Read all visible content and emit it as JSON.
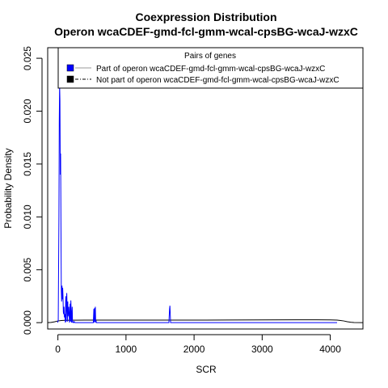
{
  "chart_data": {
    "type": "line",
    "title": "Coexpression Distribution",
    "subtitle": "Operon wcaCDEF-gmd-fcl-gmm-wcal-cpsBG-wcaJ-wzxC",
    "xlabel": "SCR",
    "ylabel": "Probability Density",
    "xlim": [
      -150,
      4480
    ],
    "ylim": [
      -0.0006,
      0.026
    ],
    "x_ticks": [
      0,
      1000,
      2000,
      3000,
      4000
    ],
    "y_ticks": [
      0.0,
      0.005,
      0.01,
      0.015,
      0.02,
      0.025
    ],
    "x_tick_labels": [
      "0",
      "1000",
      "2000",
      "3000",
      "4000"
    ],
    "y_tick_labels": [
      "0.000",
      "0.005",
      "0.010",
      "0.015",
      "0.020",
      "0.025"
    ],
    "grid": false,
    "legend": {
      "title": "Pairs of genes",
      "position": "top",
      "entries": [
        "Part of operon wcaCDEF-gmd-fcl-gmm-wcal-cpsBG-wcaJ-wzxC",
        "Not part of operon wcaCDEF-gmd-fcl-gmm-wcal-cpsBG-wcaJ-wzxC"
      ]
    },
    "series": [
      {
        "name": "Part of operon wcaCDEF-gmd-fcl-gmm-wcal-cpsBG-wcaJ-wzxC",
        "color": "#0000ff",
        "style": "solid",
        "x": [
          -5,
          5,
          15,
          20,
          25,
          30,
          35,
          40,
          45,
          50,
          55,
          60,
          65,
          70,
          75,
          80,
          85,
          90,
          95,
          100,
          110,
          115,
          120,
          130,
          140,
          145,
          150,
          160,
          170,
          180,
          185,
          190,
          200,
          210,
          215,
          220,
          230,
          240,
          250,
          520,
          528,
          535,
          540,
          545,
          550,
          555,
          560,
          565,
          1630,
          1640,
          1645,
          1650,
          1655,
          4100
        ],
        "y": [
          0,
          0.0002,
          0.01,
          0.019,
          0.0225,
          0.021,
          0.014,
          0.016,
          0.009,
          0.003,
          0.002,
          0.0035,
          0.0022,
          0.0033,
          0.0025,
          0.001,
          0.0008,
          0.0015,
          0.0005,
          0.0008,
          0.0,
          0.0025,
          0.0001,
          0.0028,
          0.0001,
          0.002,
          0.0006,
          0.0015,
          0.0,
          0.0018,
          0.0001,
          0.0021,
          0.0,
          0.0015,
          0.0,
          0.0001,
          0.0,
          0.0001,
          0.0,
          0.0,
          0.0013,
          0.0,
          0.0014,
          0.0001,
          0.0015,
          0.0,
          0.0002,
          0.0,
          0.0,
          0.0013,
          0.0016,
          0.0008,
          0.0,
          0.0
        ]
      },
      {
        "name": "Not part of operon wcaCDEF-gmd-fcl-gmm-wcal-cpsBG-wcaJ-wzxC",
        "color": "#000000",
        "style": "solid",
        "x": [
          -150,
          -100,
          -50,
          0,
          50,
          100,
          200,
          400,
          800,
          1200,
          1600,
          2000,
          2500,
          3000,
          3500,
          3800,
          4000,
          4100,
          4150,
          4200,
          4250,
          4300,
          4350,
          4480
        ],
        "y": [
          0.0,
          2e-05,
          8e-05,
          0.00016,
          0.0002,
          0.00022,
          0.00023,
          0.00024,
          0.00024,
          0.00024,
          0.00024,
          0.00024,
          0.00025,
          0.00026,
          0.00027,
          0.00027,
          0.00026,
          0.00024,
          0.0002,
          0.00016,
          9e-05,
          4e-05,
          1e-05,
          0.0
        ]
      }
    ]
  }
}
